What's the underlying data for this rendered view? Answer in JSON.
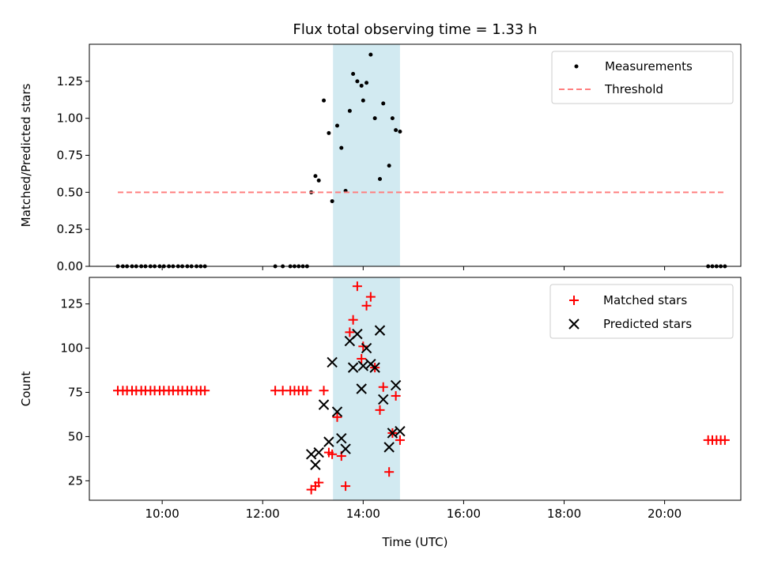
{
  "figure": {
    "title": "Flux total observing time = 1.33 h",
    "xlabel": "Time (UTC)",
    "x_tick_labels": [
      "10:00",
      "12:00",
      "14:00",
      "16:00",
      "18:00",
      "20:00"
    ],
    "shaded_interval": {
      "start": "13:24",
      "end": "14:44",
      "color": "#add8e6"
    }
  },
  "chart_data": [
    {
      "type": "scatter",
      "ylabel": "Matched/Predicted stars",
      "xlim": [
        "08:33",
        "21:31"
      ],
      "ylim": [
        0,
        1.5
      ],
      "y_ticks": [
        "0.00",
        "0.25",
        "0.50",
        "0.75",
        "1.00",
        "1.25"
      ],
      "legend_position": "top-right",
      "series": [
        {
          "name": "Measurements",
          "kind": "points",
          "color": "#000000",
          "points": [
            [
              "09:07",
              0
            ],
            [
              "09:13",
              0
            ],
            [
              "09:18",
              0
            ],
            [
              "09:24",
              0
            ],
            [
              "09:29",
              0
            ],
            [
              "09:35",
              0
            ],
            [
              "09:40",
              0
            ],
            [
              "09:46",
              0
            ],
            [
              "09:51",
              0
            ],
            [
              "09:57",
              0
            ],
            [
              "10:02",
              0
            ],
            [
              "10:08",
              0
            ],
            [
              "10:13",
              0
            ],
            [
              "10:19",
              0
            ],
            [
              "10:24",
              0
            ],
            [
              "10:30",
              0
            ],
            [
              "10:35",
              0
            ],
            [
              "10:41",
              0
            ],
            [
              "10:46",
              0
            ],
            [
              "10:51",
              0
            ],
            [
              "12:15",
              0
            ],
            [
              "12:24",
              0
            ],
            [
              "12:33",
              0
            ],
            [
              "12:38",
              0
            ],
            [
              "12:43",
              0
            ],
            [
              "12:48",
              0
            ],
            [
              "12:53",
              0
            ],
            [
              "12:58",
              0.5
            ],
            [
              "13:03",
              0.61
            ],
            [
              "13:07",
              0.58
            ],
            [
              "13:13",
              1.12
            ],
            [
              "13:19",
              0.9
            ],
            [
              "13:23",
              0.44
            ],
            [
              "13:29",
              0.95
            ],
            [
              "13:34",
              0.8
            ],
            [
              "13:39",
              0.51
            ],
            [
              "13:44",
              1.05
            ],
            [
              "13:48",
              1.3
            ],
            [
              "13:53",
              1.25
            ],
            [
              "13:58",
              1.22
            ],
            [
              "14:00",
              1.12
            ],
            [
              "14:04",
              1.24
            ],
            [
              "14:09",
              1.43
            ],
            [
              "14:14",
              1.0
            ],
            [
              "14:20",
              0.59
            ],
            [
              "14:24",
              1.1
            ],
            [
              "14:31",
              0.68
            ],
            [
              "14:35",
              1.0
            ],
            [
              "14:39",
              0.92
            ],
            [
              "14:44",
              0.91
            ],
            [
              "20:52",
              0
            ],
            [
              "20:57",
              0
            ],
            [
              "21:02",
              0
            ],
            [
              "21:07",
              0
            ],
            [
              "21:12",
              0
            ]
          ]
        },
        {
          "name": "Threshold",
          "kind": "dashed-line",
          "color": "#ff7f7f",
          "points": [
            [
              "09:07",
              0.5
            ],
            [
              "21:12",
              0.5
            ]
          ]
        }
      ]
    },
    {
      "type": "scatter",
      "ylabel": "Count",
      "xlim": [
        "08:33",
        "21:31"
      ],
      "ylim": [
        14,
        140
      ],
      "y_ticks": [
        "25",
        "50",
        "75",
        "100",
        "125"
      ],
      "legend_position": "top-right",
      "series": [
        {
          "name": "Matched stars",
          "kind": "plus",
          "color": "#ff0000",
          "points": [
            [
              "09:07",
              76
            ],
            [
              "09:13",
              76
            ],
            [
              "09:18",
              76
            ],
            [
              "09:24",
              76
            ],
            [
              "09:29",
              76
            ],
            [
              "09:35",
              76
            ],
            [
              "09:40",
              76
            ],
            [
              "09:46",
              76
            ],
            [
              "09:51",
              76
            ],
            [
              "09:57",
              76
            ],
            [
              "10:02",
              76
            ],
            [
              "10:08",
              76
            ],
            [
              "10:13",
              76
            ],
            [
              "10:19",
              76
            ],
            [
              "10:24",
              76
            ],
            [
              "10:30",
              76
            ],
            [
              "10:35",
              76
            ],
            [
              "10:41",
              76
            ],
            [
              "10:46",
              76
            ],
            [
              "10:51",
              76
            ],
            [
              "12:15",
              76
            ],
            [
              "12:24",
              76
            ],
            [
              "12:33",
              76
            ],
            [
              "12:38",
              76
            ],
            [
              "12:43",
              76
            ],
            [
              "12:48",
              76
            ],
            [
              "12:53",
              76
            ],
            [
              "12:58",
              20
            ],
            [
              "13:03",
              22
            ],
            [
              "13:07",
              24
            ],
            [
              "13:13",
              76
            ],
            [
              "13:19",
              41
            ],
            [
              "13:23",
              40
            ],
            [
              "13:29",
              61
            ],
            [
              "13:34",
              39
            ],
            [
              "13:39",
              22
            ],
            [
              "13:44",
              109
            ],
            [
              "13:48",
              116
            ],
            [
              "13:53",
              135
            ],
            [
              "13:58",
              94
            ],
            [
              "14:00",
              101
            ],
            [
              "14:04",
              124
            ],
            [
              "14:09",
              129
            ],
            [
              "14:14",
              89
            ],
            [
              "14:20",
              65
            ],
            [
              "14:24",
              78
            ],
            [
              "14:31",
              30
            ],
            [
              "14:35",
              52
            ],
            [
              "14:39",
              73
            ],
            [
              "14:44",
              48
            ],
            [
              "20:52",
              48
            ],
            [
              "20:57",
              48
            ],
            [
              "21:02",
              48
            ],
            [
              "21:07",
              48
            ],
            [
              "21:12",
              48
            ]
          ]
        },
        {
          "name": "Predicted stars",
          "kind": "x",
          "color": "#000000",
          "points": [
            [
              "12:58",
              40
            ],
            [
              "13:03",
              34
            ],
            [
              "13:07",
              41
            ],
            [
              "13:13",
              68
            ],
            [
              "13:19",
              47
            ],
            [
              "13:23",
              92
            ],
            [
              "13:29",
              64
            ],
            [
              "13:34",
              49
            ],
            [
              "13:39",
              43
            ],
            [
              "13:44",
              104
            ],
            [
              "13:48",
              89
            ],
            [
              "13:53",
              108
            ],
            [
              "13:58",
              77
            ],
            [
              "14:00",
              90
            ],
            [
              "14:04",
              100
            ],
            [
              "14:09",
              91
            ],
            [
              "14:14",
              89
            ],
            [
              "14:20",
              110
            ],
            [
              "14:24",
              71
            ],
            [
              "14:31",
              44
            ],
            [
              "14:35",
              52
            ],
            [
              "14:39",
              79
            ],
            [
              "14:44",
              53
            ]
          ]
        }
      ]
    }
  ]
}
